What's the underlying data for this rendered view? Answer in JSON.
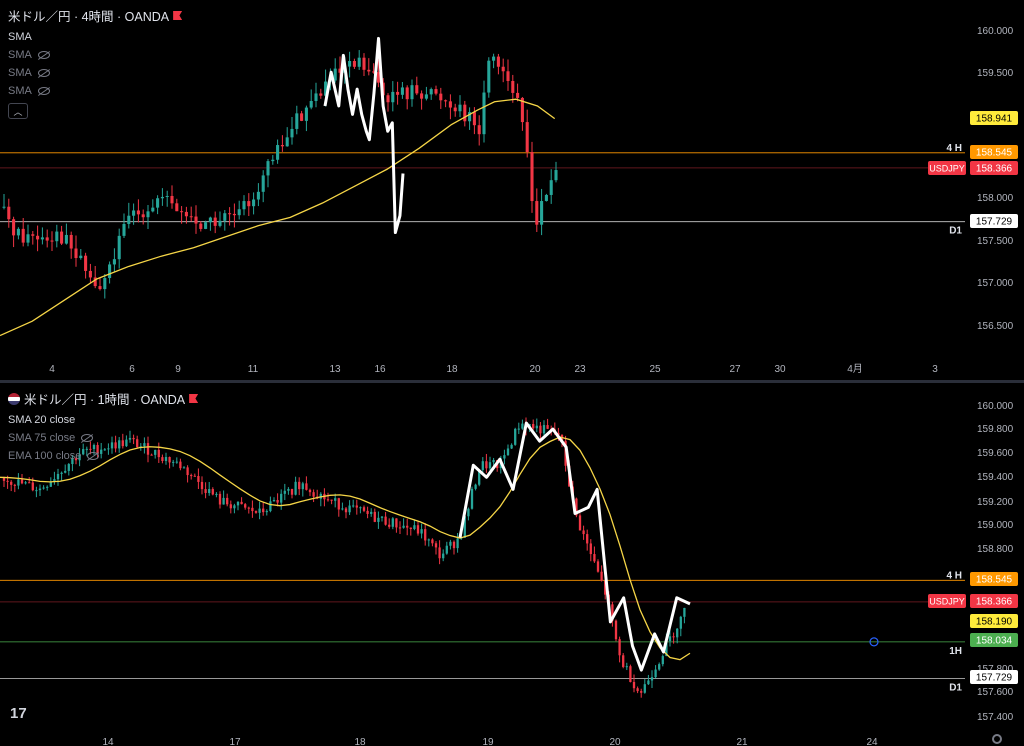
{
  "top": {
    "title": "米ドル／円 · 4時間 · OANDA",
    "indicators": [
      {
        "label": "SMA",
        "visible": true
      },
      {
        "label": "SMA",
        "visible": false
      },
      {
        "label": "SMA",
        "visible": false
      },
      {
        "label": "SMA",
        "visible": false
      }
    ],
    "collapse_icon": "chevron-up-icon"
  },
  "bottom": {
    "title": "米ドル／円 · 1時間 · OANDA",
    "indicators": [
      {
        "label": "SMA 20 close",
        "visible": true
      },
      {
        "label": "SMA 75 close",
        "visible": false
      },
      {
        "label": "EMA 100 close",
        "visible": false
      }
    ],
    "logo": "17"
  },
  "colors": {
    "up": "#26a69a",
    "down": "#f23645",
    "sma": "#f5d547",
    "drawing": "#ffffff",
    "line_orange": "#ff9800",
    "line_white": "#ffffff",
    "line_green": "#4caf50"
  },
  "chart_data": [
    {
      "type": "candlestick",
      "symbol": "USDJPY",
      "timeframe": "4時間",
      "x_tick_labels": [
        "4",
        "6",
        "9",
        "11",
        "13",
        "16",
        "18",
        "20",
        "23",
        "25",
        "27",
        "30",
        "4月",
        "3"
      ],
      "y_tick_labels": [
        "160.000",
        "159.500",
        "158.000",
        "157.500",
        "157.000",
        "156.500"
      ],
      "ylim": [
        156.3,
        160.2
      ],
      "price_labels": [
        {
          "value": "158.941",
          "kind": "sma"
        },
        {
          "value": "158.545",
          "kind": "orange-line"
        },
        {
          "value": "USDJPY",
          "kind": "symbol"
        },
        {
          "value": "158.366",
          "kind": "last"
        },
        {
          "value": "157.729",
          "kind": "white-line"
        }
      ],
      "line_labels": [
        {
          "text": "4 H",
          "price": 158.545
        },
        {
          "text": "D1",
          "price": 157.729
        }
      ],
      "horizontal_lines": [
        {
          "price": 158.545,
          "color": "orange"
        },
        {
          "price": 158.366,
          "color": "red"
        },
        {
          "price": 157.729,
          "color": "white"
        }
      ],
      "sma_points": [
        [
          0,
          156.38
        ],
        [
          15,
          156.55
        ],
        [
          30,
          156.8
        ],
        [
          45,
          157.05
        ],
        [
          60,
          157.2
        ],
        [
          75,
          157.32
        ],
        [
          90,
          157.42
        ],
        [
          105,
          157.55
        ],
        [
          120,
          157.68
        ],
        [
          135,
          157.78
        ],
        [
          150,
          157.95
        ],
        [
          165,
          158.15
        ],
        [
          180,
          158.35
        ],
        [
          195,
          158.6
        ],
        [
          210,
          158.88
        ],
        [
          222,
          159.05
        ],
        [
          230,
          159.15
        ],
        [
          240,
          159.18
        ],
        [
          250,
          159.1
        ],
        [
          258,
          158.95
        ]
      ],
      "drawing_path": [
        [
          0,
          159.1
        ],
        [
          4,
          159.5
        ],
        [
          9,
          159.1
        ],
        [
          12,
          159.7
        ],
        [
          15,
          159.3
        ],
        [
          18,
          159.0
        ],
        [
          21,
          159.3
        ],
        [
          24,
          159.0
        ],
        [
          27,
          158.8
        ],
        [
          29,
          158.7
        ],
        [
          32,
          159.25
        ],
        [
          35,
          159.9
        ],
        [
          38,
          159.1
        ],
        [
          41,
          158.8
        ],
        [
          44,
          158.9
        ],
        [
          46,
          157.6
        ],
        [
          49,
          157.8
        ],
        [
          51,
          158.3
        ]
      ],
      "drawing_x_range": [
        150,
        228
      ],
      "candle_seed": 41,
      "candle_count": 140
    },
    {
      "type": "candlestick",
      "symbol": "USDJPY",
      "timeframe": "1時間",
      "x_tick_labels": [
        "14",
        "17",
        "18",
        "19",
        "20",
        "21",
        "24"
      ],
      "y_tick_labels": [
        "160.000",
        "159.800",
        "159.600",
        "159.400",
        "159.200",
        "159.000",
        "158.800",
        "157.800",
        "157.600",
        "157.400"
      ],
      "ylim": [
        157.3,
        160.1
      ],
      "price_labels": [
        {
          "value": "158.545",
          "kind": "orange-line"
        },
        {
          "value": "USDJPY",
          "kind": "symbol"
        },
        {
          "value": "158.366",
          "kind": "last"
        },
        {
          "value": "158.190",
          "kind": "sma"
        },
        {
          "value": "158.034",
          "kind": "green-line"
        },
        {
          "value": "157.729",
          "kind": "white-line"
        }
      ],
      "line_labels": [
        {
          "text": "4 H",
          "price": 158.545
        },
        {
          "text": "1H",
          "price": 158.034
        },
        {
          "text": "D1",
          "price": 157.729
        }
      ],
      "horizontal_lines": [
        {
          "price": 158.545,
          "color": "orange"
        },
        {
          "price": 158.366,
          "color": "red"
        },
        {
          "price": 158.034,
          "color": "green"
        },
        {
          "price": 157.729,
          "color": "white"
        }
      ],
      "drawing_path": [
        [
          0,
          158.9
        ],
        [
          3,
          159.5
        ],
        [
          6,
          159.4
        ],
        [
          9,
          159.55
        ],
        [
          12,
          159.3
        ],
        [
          15,
          159.85
        ],
        [
          18,
          159.7
        ],
        [
          21,
          159.8
        ],
        [
          24,
          159.65
        ],
        [
          26,
          159.1
        ],
        [
          29,
          159.15
        ],
        [
          31,
          159.3
        ],
        [
          34,
          158.2
        ],
        [
          37,
          158.4
        ],
        [
          39,
          158.0
        ],
        [
          41,
          157.8
        ],
        [
          44,
          158.1
        ],
        [
          46,
          157.95
        ],
        [
          49,
          158.4
        ],
        [
          52,
          158.35
        ]
      ],
      "drawing_x_range": [
        460,
        690
      ]
    }
  ]
}
